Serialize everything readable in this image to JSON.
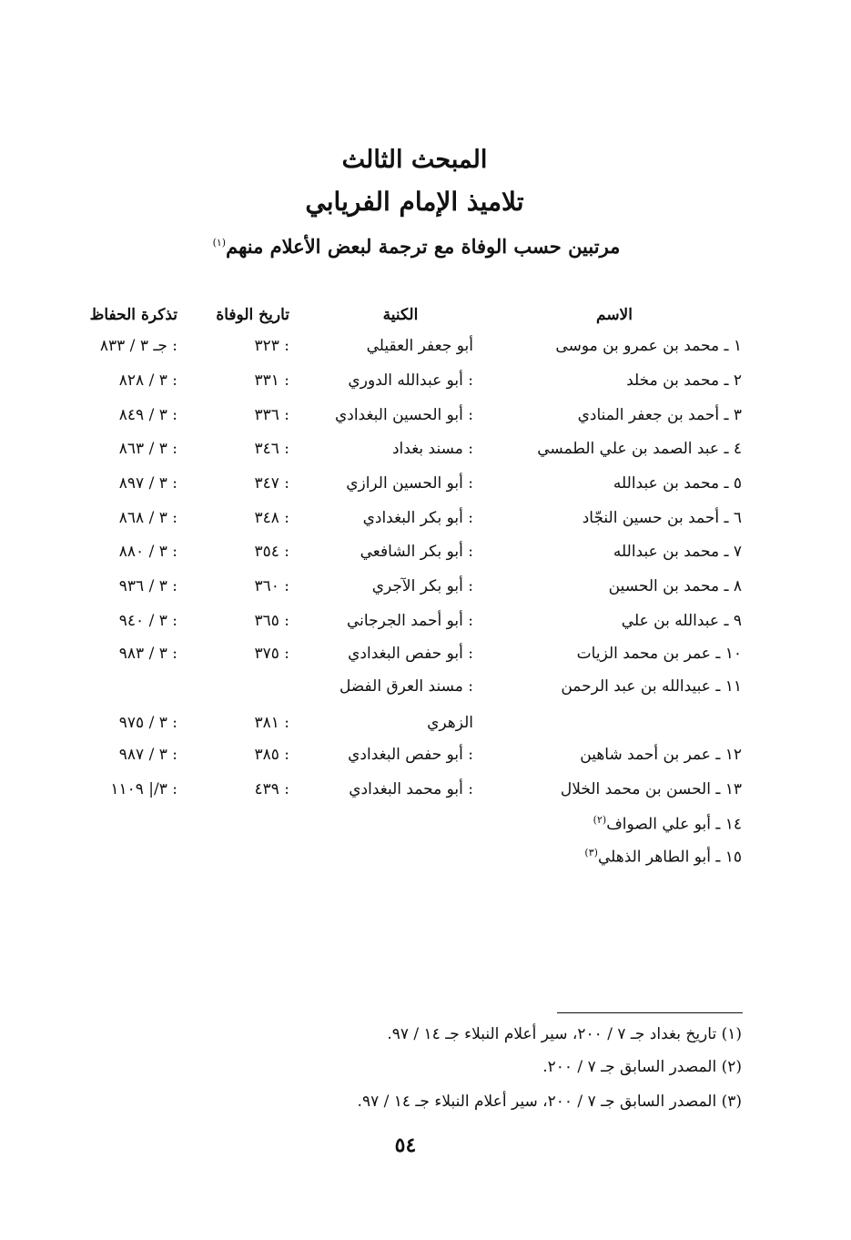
{
  "heading": {
    "line1": "المبحث الثالث",
    "line2": "تلاميذ الإمام الفريابي",
    "line3": "مرتبين حسب الوفاة مع ترجمة لبعض الأعلام منهم",
    "line3_note": "(١)"
  },
  "table": {
    "headers": {
      "name": "الاسم",
      "kunya": "الكنية",
      "death": "تاريخ الوفاة",
      "tadhkira": "تذكرة الحفاظ"
    },
    "rows": [
      {
        "name": "١ ـ محمد بن عمرو بن موسى",
        "kunya": "أبو جعفر العقيلي",
        "death": ": ٣٢٣",
        "tadhkira": ": جـ ٣ / ٨٣٣"
      },
      {
        "name": "٢ ـ محمد بن مخلد",
        "kunya": ": أبو عبدالله الدوري",
        "death": ": ٣٣١",
        "tadhkira": ": ٣ / ٨٢٨"
      },
      {
        "name": "٣ ـ أحمد بن جعفر المنادي",
        "kunya": ": أبو الحسين البغدادي",
        "death": ": ٣٣٦",
        "tadhkira": ": ٣ / ٨٤٩"
      },
      {
        "name": "٤ ـ عبد الصمد بن علي الطمسي",
        "kunya": ": مسند بغداد",
        "death": ": ٣٤٦",
        "tadhkira": ": ٣ / ٨٦٣"
      },
      {
        "name": "٥ ـ محمد بن عبدالله",
        "kunya": ": أبو الحسين الرازي",
        "death": ": ٣٤٧",
        "tadhkira": ": ٣ / ٨٩٧"
      },
      {
        "name": "٦ ـ أحمد بن حسين النجّاد",
        "kunya": ": أبو بكر البغدادي",
        "death": ": ٣٤٨",
        "tadhkira": ": ٣ / ٨٦٨"
      },
      {
        "name": "٧ ـ محمد بن عبدالله",
        "kunya": ": أبو بكر الشافعي",
        "death": ": ٣٥٤",
        "tadhkira": ": ٣ / ٨٨٠"
      },
      {
        "name": "٨ ـ محمد بن الحسين",
        "kunya": ": أبو بكر الآجري",
        "death": ": ٣٦٠",
        "tadhkira": ": ٣ / ٩٣٦"
      },
      {
        "name": "٩ ـ عبدالله بن علي",
        "kunya": ": أبو أحمد الجرجاني",
        "death": ": ٣٦٥",
        "tadhkira": ": ٣ / ٩٤٠"
      },
      {
        "name": "١٠ ـ عمر بن محمد الزيات",
        "kunya": ": أبو حفص البغدادي",
        "death": ": ٣٧٥",
        "tadhkira": ": ٣ / ٩٨٣"
      },
      {
        "name": "١١ ـ عبيدالله بن عبد الرحمن",
        "kunya": ": مسند العرق الفضل",
        "death": "",
        "tadhkira": ""
      },
      {
        "name": "",
        "kunya": "الزهري",
        "death": ": ٣٨١",
        "tadhkira": ": ٣ / ٩٧٥"
      },
      {
        "name": "١٢ ـ عمر بن أحمد شاهين",
        "kunya": ": أبو حفص البغدادي",
        "death": ": ٣٨٥",
        "tadhkira": ": ٣ / ٩٨٧"
      },
      {
        "name": "١٣ ـ الحسن بن محمد الخلال",
        "kunya": ": أبو محمد البغدادي",
        "death": ": ٤٣٩",
        "tadhkira": ": ٣/| ١١٠٩"
      },
      {
        "name": "١٤ ـ أبو علي الصواف",
        "note": "(٢)",
        "kunya": "",
        "death": "",
        "tadhkira": ""
      },
      {
        "name": "١٥ ـ أبو الطاهر الذهلي",
        "note": "(٣)",
        "kunya": "",
        "death": "",
        "tadhkira": ""
      }
    ]
  },
  "footnotes": [
    "(١) تاريخ بغداد جـ ٧ / ٢٠٠، سير أعلام النبلاء جـ ١٤ / ٩٧.",
    "(٢) المصدر السابق جـ ٧ / ٢٠٠.",
    "(٣) المصدر السابق جـ ٧ / ٢٠٠، سير أعلام النبلاء جـ ١٤ / ٩٧."
  ],
  "page_number": "٥٤"
}
